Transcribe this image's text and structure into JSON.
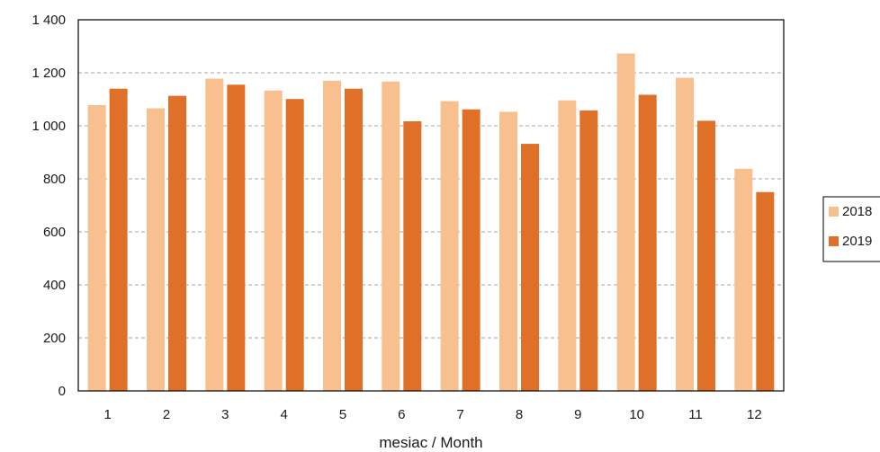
{
  "chart_data": {
    "type": "bar",
    "title": "",
    "xlabel": "mesiac / Month",
    "ylabel": "",
    "ylim": [
      0,
      1400
    ],
    "yticks": [
      0,
      200,
      400,
      600,
      800,
      1000,
      1200,
      1400
    ],
    "ytick_labels": [
      "0",
      "200",
      "400",
      "600",
      "800",
      "1 000",
      "1 200",
      "1 400"
    ],
    "categories": [
      "1",
      "2",
      "3",
      "4",
      "5",
      "6",
      "7",
      "8",
      "9",
      "10",
      "11",
      "12"
    ],
    "grid": "horizontal dashed",
    "legend_position": "right",
    "series": [
      {
        "name": "2018",
        "color": "#f9c08f",
        "values": [
          1078,
          1066,
          1178,
          1133,
          1170,
          1167,
          1093,
          1053,
          1096,
          1273,
          1181,
          838
        ]
      },
      {
        "name": "2019",
        "color": "#e07028",
        "values": [
          1140,
          1113,
          1155,
          1101,
          1140,
          1017,
          1062,
          932,
          1058,
          1117,
          1019,
          750
        ]
      }
    ]
  }
}
